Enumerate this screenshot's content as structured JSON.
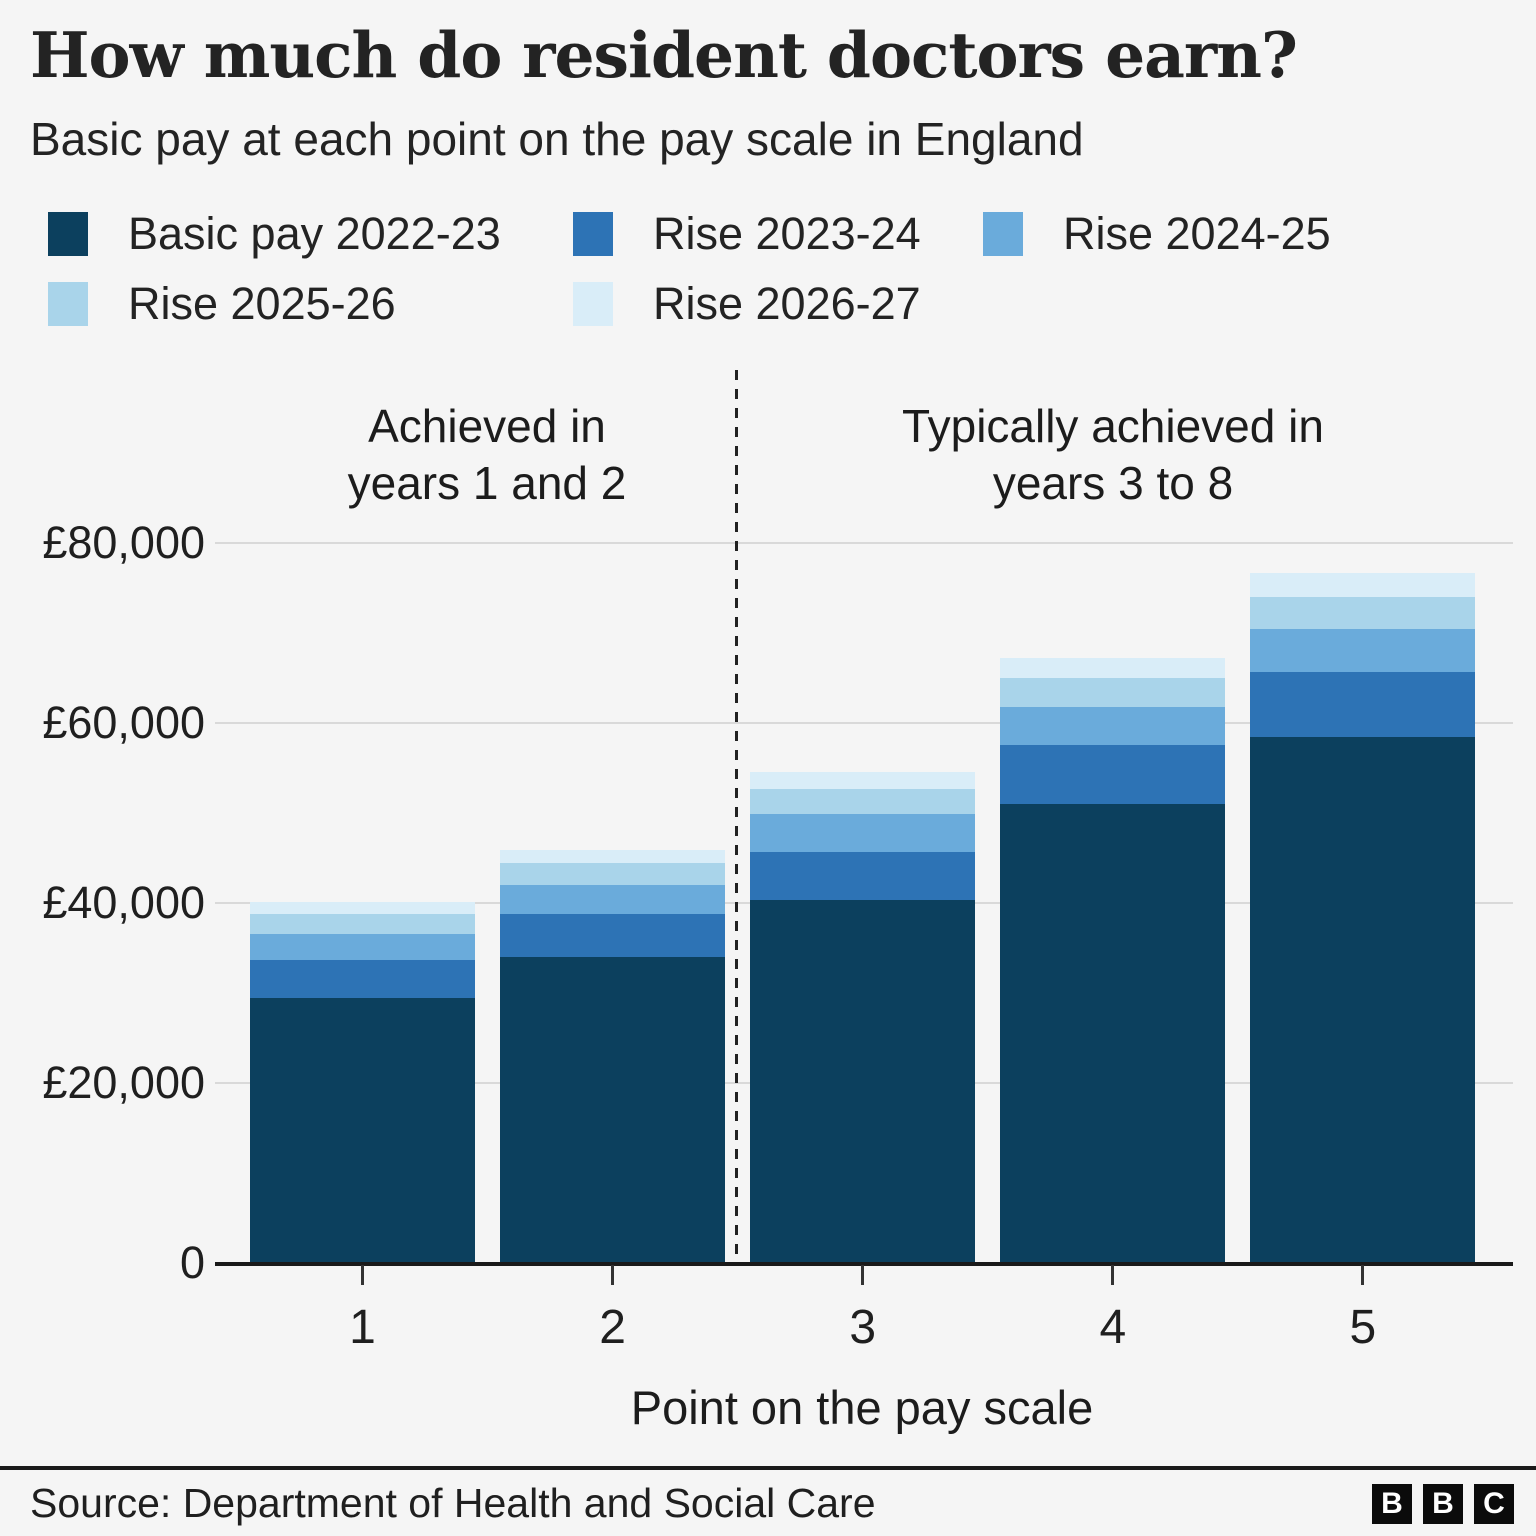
{
  "header": {
    "title": "How much do resident doctors earn?",
    "subtitle": "Basic pay at each point on the pay scale in England"
  },
  "chart_data": {
    "type": "bar",
    "stacked": true,
    "title": "How much do resident doctors earn?",
    "subtitle": "Basic pay at each point on the pay scale in England",
    "xlabel": "Point on the pay scale",
    "categories": [
      "1",
      "2",
      "3",
      "4",
      "5"
    ],
    "series": [
      {
        "name": "Basic pay 2022-23",
        "color": "#0c405e",
        "values": [
          29400,
          34000,
          40300,
          51000,
          58400
        ]
      },
      {
        "name": "Rise 2023-24",
        "color": "#2d73b5",
        "values": [
          4300,
          4800,
          5400,
          6600,
          7300
        ]
      },
      {
        "name": "Rise 2024-25",
        "color": "#6aabdb",
        "values": [
          2900,
          3200,
          4200,
          4200,
          4700
        ]
      },
      {
        "name": "Rise 2025-26",
        "color": "#a9d4ea",
        "values": [
          2200,
          2400,
          2800,
          3200,
          3600
        ]
      },
      {
        "name": "Rise 2026-27",
        "color": "#d9edf8",
        "values": [
          1300,
          1500,
          1900,
          2200,
          2700
        ]
      }
    ],
    "stack_totals": [
      40100,
      45900,
      54600,
      67200,
      76700
    ],
    "ylim": [
      0,
      80000
    ],
    "yticks": [
      {
        "value": 0,
        "label": "0"
      },
      {
        "value": 20000,
        "label": "£20,000"
      },
      {
        "value": 40000,
        "label": "£40,000"
      },
      {
        "value": 60000,
        "label": "£60,000"
      },
      {
        "value": 80000,
        "label": "£80,000"
      }
    ],
    "legend_position": "top",
    "grid": "horizontal",
    "divider": {
      "between_categories": [
        "2",
        "3"
      ],
      "style": "dashed"
    },
    "annotations": [
      {
        "text": "Achieved in years 1 and 2",
        "over_categories": [
          "1",
          "2"
        ]
      },
      {
        "text": "Typically achieved in years 3 to 8",
        "over_categories": [
          "3",
          "4",
          "5"
        ]
      }
    ]
  },
  "annotations": {
    "left": {
      "line1": "Achieved in",
      "line2": "years 1 and 2"
    },
    "right": {
      "line1": "Typically achieved in",
      "line2": "years 3 to 8"
    }
  },
  "footer": {
    "source": "Source: Department of Health and Social Care",
    "logo_letters": [
      "B",
      "B",
      "C"
    ]
  }
}
